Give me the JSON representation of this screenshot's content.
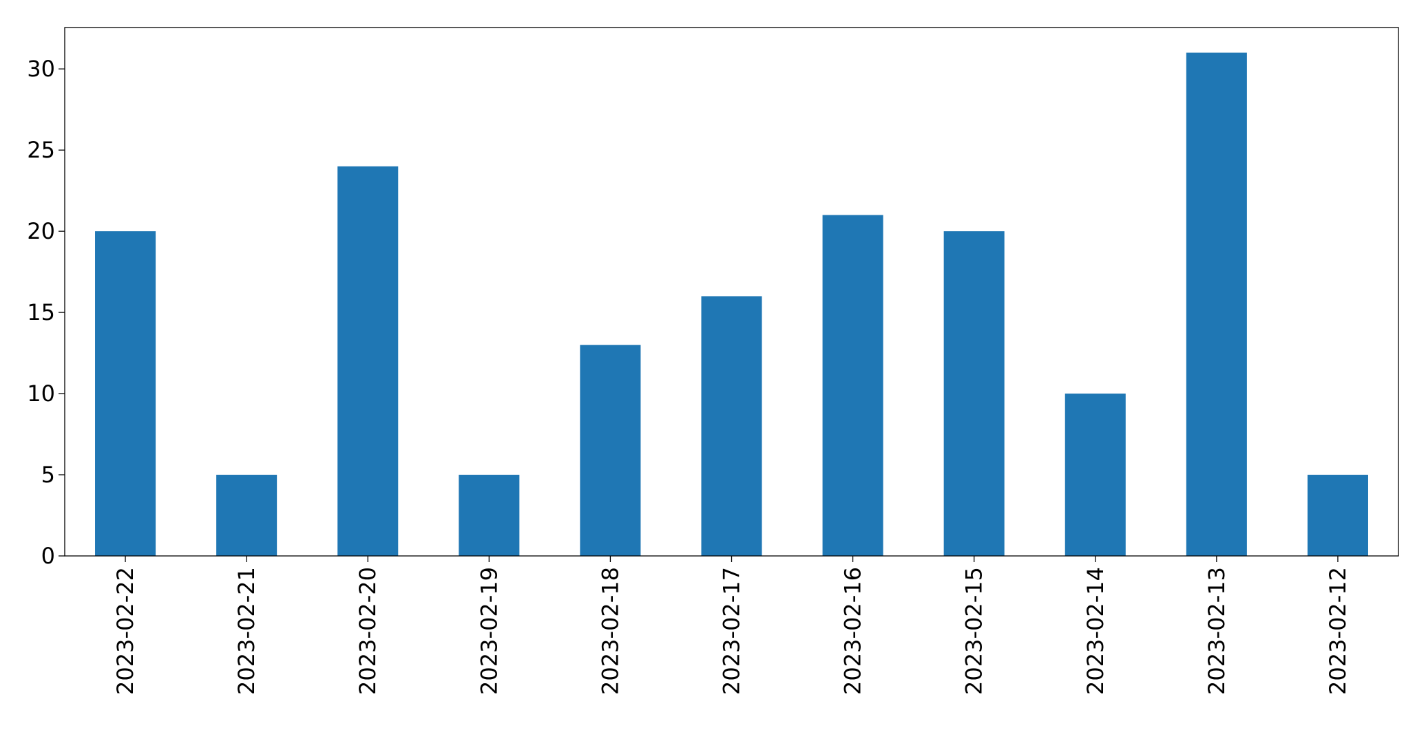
{
  "chart_data": {
    "type": "bar",
    "categories": [
      "2023-02-22",
      "2023-02-21",
      "2023-02-20",
      "2023-02-19",
      "2023-02-18",
      "2023-02-17",
      "2023-02-16",
      "2023-02-15",
      "2023-02-14",
      "2023-02-13",
      "2023-02-12"
    ],
    "values": [
      20,
      5,
      24,
      5,
      13,
      16,
      21,
      20,
      10,
      31,
      5
    ],
    "color": "#1f77b4",
    "ylim": [
      0,
      32.55
    ],
    "yticks": [
      0,
      5,
      10,
      15,
      20,
      25,
      30
    ],
    "grid": false
  }
}
